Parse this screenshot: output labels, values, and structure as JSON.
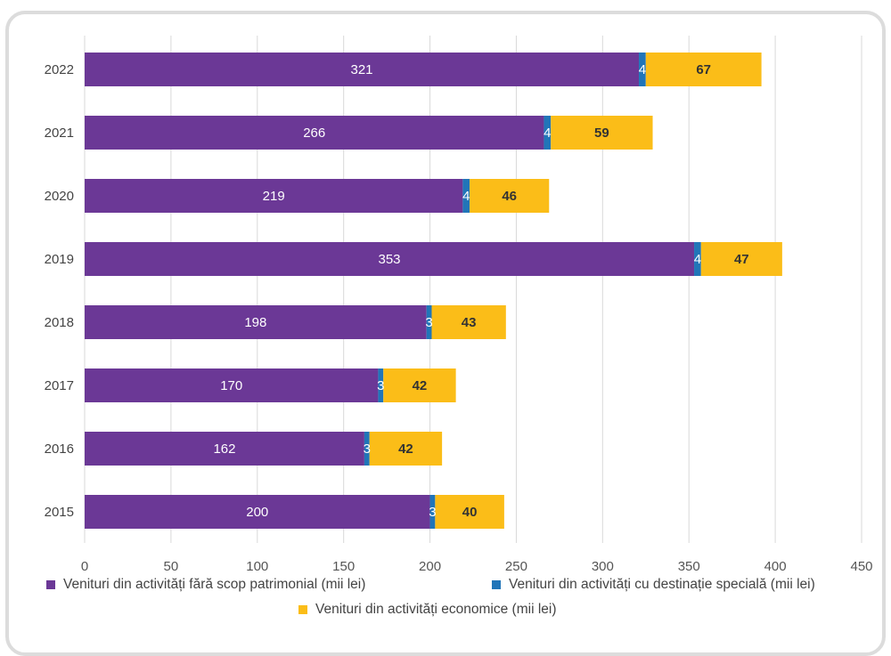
{
  "chart_data": {
    "type": "bar",
    "orientation": "horizontal",
    "stacked": true,
    "categories": [
      "2015",
      "2016",
      "2017",
      "2018",
      "2019",
      "2020",
      "2021",
      "2022"
    ],
    "series": [
      {
        "name": "Venituri din activități fără scop patrimonial (mii lei)",
        "color": "#6b3896",
        "label_color": "#ffffff",
        "label_bold": false,
        "values": [
          200,
          162,
          170,
          198,
          353,
          219,
          266,
          321
        ]
      },
      {
        "name": "Venituri din activități cu destinație specială (mii lei)",
        "color": "#2175b8",
        "label_color": "#ffffff",
        "label_bold": false,
        "values": [
          3,
          3,
          3,
          3,
          4,
          4,
          4,
          4
        ]
      },
      {
        "name": "Venituri din activități economice (mii lei)",
        "color": "#fbbd18",
        "label_color": "#333333",
        "label_bold": true,
        "values": [
          40,
          42,
          42,
          43,
          47,
          46,
          59,
          67
        ]
      }
    ],
    "xlim": [
      0,
      450
    ],
    "xticks": [
      0,
      50,
      100,
      150,
      200,
      250,
      300,
      350,
      400,
      450
    ],
    "grid": "vertical",
    "legend_position": "bottom",
    "title": "",
    "xlabel": "",
    "ylabel": ""
  }
}
